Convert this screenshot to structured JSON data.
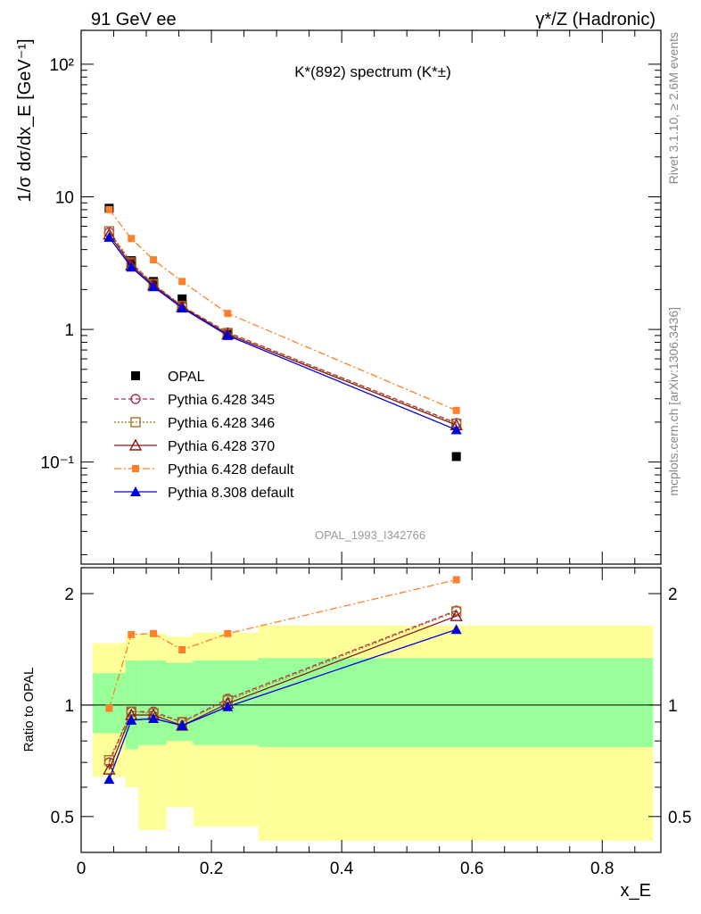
{
  "header": {
    "left": "91 GeV ee",
    "right": "γ*/Z (Hadronic)"
  },
  "side_text": {
    "top": "Rivet 3.1.10, ≥ 2.6M events",
    "bottom": "mcplots.cern.ch [arXiv:1306.3436]"
  },
  "upper_ylabel": "1/σ dσ/dx_E [GeV⁻¹]",
  "lower_ylabel": "Ratio to OPAL",
  "xlabel": "x_E",
  "title": "K*(892) spectrum (K*±)",
  "watermark": "OPAL_1993_I342766",
  "colors": {
    "band_outer": "#ffff99",
    "band_inner": "#99ff99"
  },
  "chart_data": [
    {
      "type": "scatter",
      "panel": "spectrum",
      "yscale": "log",
      "xlim": [
        0,
        0.89
      ],
      "ylim": [
        0.017,
        180
      ],
      "x_ticks": [
        0,
        0.2,
        0.4,
        0.6,
        0.8
      ],
      "y_ticks": [
        {
          "value": 0.1,
          "label": "10⁻¹"
        },
        {
          "value": 1,
          "label": "1"
        },
        {
          "value": 10,
          "label": "10"
        },
        {
          "value": 100,
          "label": "10²"
        }
      ],
      "x": [
        0.043,
        0.077,
        0.111,
        0.155,
        0.225,
        0.576
      ],
      "series": [
        {
          "name": "OPAL",
          "color": "#000000",
          "marker": "square-filled",
          "line": "none",
          "values": [
            8.2,
            3.3,
            2.3,
            1.7,
            0.92,
            0.11
          ]
        },
        {
          "name": "Pythia 6.428 345",
          "color": "#b03050",
          "marker": "circle-open",
          "line": "dashed",
          "values": [
            5.4,
            3.15,
            2.2,
            1.5,
            0.95,
            0.197
          ]
        },
        {
          "name": "Pythia 6.428 346",
          "color": "#a87028",
          "marker": "square-open",
          "line": "dotted",
          "values": [
            5.5,
            3.2,
            2.2,
            1.5,
            0.94,
            0.195
          ]
        },
        {
          "name": "Pythia 6.428 370",
          "color": "#8b1a1a",
          "marker": "triangle-open",
          "line": "solid",
          "values": [
            5.2,
            3.05,
            2.15,
            1.48,
            0.92,
            0.19
          ]
        },
        {
          "name": "Pythia 6.428 default",
          "color": "#ff7f2a",
          "marker": "square-small",
          "line": "dashdot",
          "values": [
            8.0,
            4.85,
            3.35,
            2.3,
            1.32,
            0.245
          ]
        },
        {
          "name": "Pythia 8.308 default",
          "color": "#0000dd",
          "marker": "triangle-filled",
          "line": "solid",
          "values": [
            4.95,
            2.95,
            2.1,
            1.45,
            0.9,
            0.175
          ]
        }
      ]
    },
    {
      "type": "scatter",
      "panel": "ratio",
      "yscale": "log",
      "xlim": [
        0,
        0.89
      ],
      "ylim": [
        0.4,
        2.35
      ],
      "y_ticks": [
        {
          "value": 0.5,
          "label": "0.5"
        },
        {
          "value": 1,
          "label": "1"
        },
        {
          "value": 2,
          "label": "2"
        }
      ],
      "reference": 1,
      "bands": [
        {
          "x_lo": 0.018,
          "x_hi": 0.068,
          "outer": [
            0.64,
            1.47
          ],
          "inner": [
            0.84,
            1.22
          ]
        },
        {
          "x_lo": 0.068,
          "x_hi": 0.088,
          "outer": [
            0.6,
            1.53
          ],
          "inner": [
            0.76,
            1.32
          ]
        },
        {
          "x_lo": 0.088,
          "x_hi": 0.131,
          "outer": [
            0.46,
            1.56
          ],
          "inner": [
            0.78,
            1.32
          ]
        },
        {
          "x_lo": 0.131,
          "x_hi": 0.172,
          "outer": [
            0.53,
            1.53
          ],
          "inner": [
            0.8,
            1.3
          ]
        },
        {
          "x_lo": 0.172,
          "x_hi": 0.272,
          "outer": [
            0.47,
            1.57
          ],
          "inner": [
            0.78,
            1.32
          ]
        },
        {
          "x_lo": 0.272,
          "x_hi": 0.878,
          "outer": [
            0.43,
            1.64
          ],
          "inner": [
            0.77,
            1.34
          ]
        }
      ],
      "x": [
        0.043,
        0.077,
        0.111,
        0.155,
        0.225,
        0.576
      ],
      "series": [
        {
          "name": "Pythia 6.428 345",
          "values": [
            0.7,
            0.96,
            0.96,
            0.9,
            1.04,
            1.8
          ]
        },
        {
          "name": "Pythia 6.428 346",
          "values": [
            0.71,
            0.96,
            0.95,
            0.9,
            1.03,
            1.79
          ]
        },
        {
          "name": "Pythia 6.428 370",
          "values": [
            0.67,
            0.94,
            0.94,
            0.88,
            1.01,
            1.74
          ]
        },
        {
          "name": "Pythia 6.428 default",
          "values": [
            0.98,
            1.55,
            1.56,
            1.41,
            1.56,
            2.18
          ]
        },
        {
          "name": "Pythia 8.308 default",
          "values": [
            0.63,
            0.91,
            0.92,
            0.88,
            0.99,
            1.6
          ]
        }
      ]
    }
  ]
}
